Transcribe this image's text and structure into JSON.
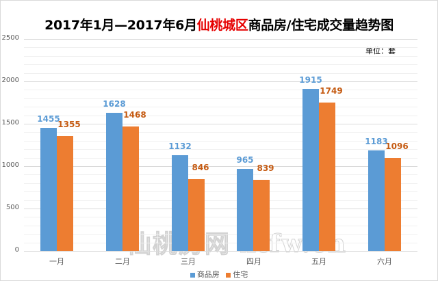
{
  "title": {
    "prefix": "2017年1月—2017年6月",
    "highlight": "仙桃城区",
    "suffix": "商品房/住宅成交量趋势图",
    "highlight_color": "#e60000"
  },
  "unit_label": "单位：套",
  "watermark": "仙桃房网 xtfw.cn",
  "legend": [
    {
      "name": "商品房",
      "color": "#5b9bd5"
    },
    {
      "name": "住宅",
      "color": "#ed7d31"
    }
  ],
  "chart_data": {
    "type": "bar",
    "title": "2017年1月—2017年6月仙桃城区商品房/住宅成交量趋势图",
    "categories": [
      "一月",
      "二月",
      "三月",
      "四月",
      "五月",
      "六月"
    ],
    "series": [
      {
        "name": "商品房",
        "color": "#5b9bd5",
        "values": [
          1455,
          1628,
          1132,
          965,
          1915,
          1183
        ]
      },
      {
        "name": "住宅",
        "color": "#ed7d31",
        "values": [
          1355,
          1468,
          846,
          839,
          1749,
          1096
        ]
      }
    ],
    "xlabel": "",
    "ylabel": "单位：套",
    "ylim": [
      0,
      2500
    ],
    "yticks": [
      0,
      500,
      1000,
      1500,
      2000,
      2500
    ],
    "grid": true,
    "legend_position": "bottom"
  }
}
